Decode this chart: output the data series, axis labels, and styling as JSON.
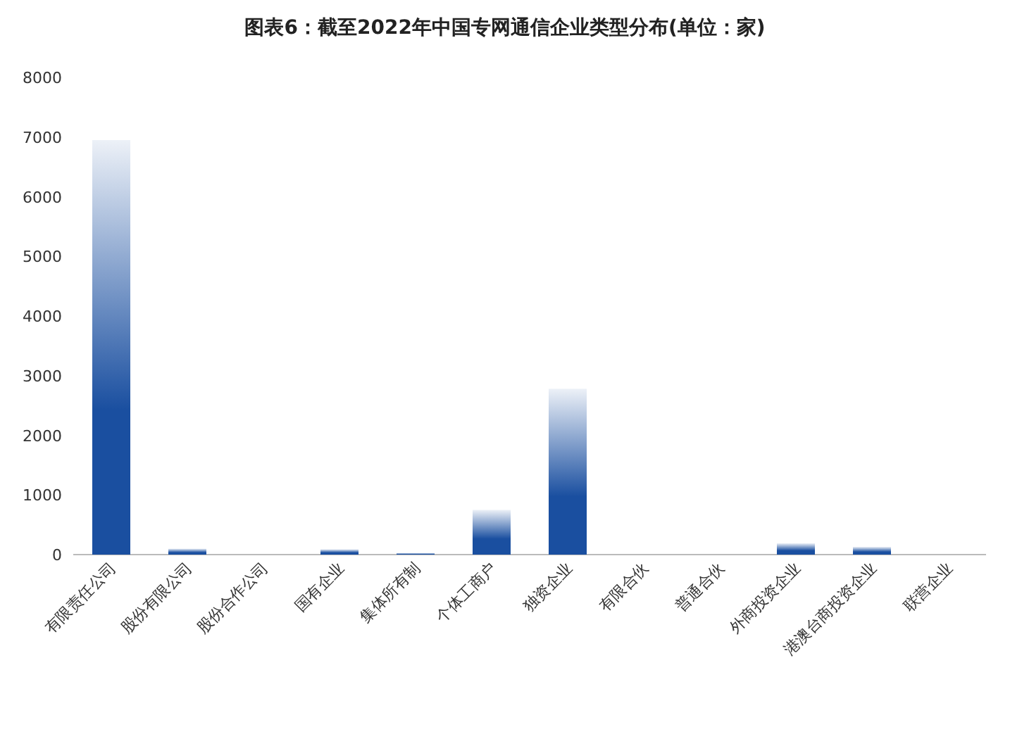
{
  "chart_data": {
    "type": "bar",
    "title": "图表6：截至2022年中国专网通信企业类型分布(单位：家)",
    "categories": [
      "有限责任公司",
      "股份有限公司",
      "股份合作公司",
      "国有企业",
      "集体所有制",
      "个体工商户",
      "独资企业",
      "有限合伙",
      "普通合伙",
      "外商投资企业",
      "港澳台商投资企业",
      "联营企业"
    ],
    "values": [
      6950,
      100,
      0,
      90,
      25,
      750,
      2780,
      0,
      0,
      190,
      130,
      0
    ],
    "color": "#1a4fa0",
    "ylim": [
      0,
      8000
    ],
    "yticks": [
      0,
      1000,
      2000,
      3000,
      4000,
      5000,
      6000,
      7000,
      8000
    ],
    "grid": false
  }
}
